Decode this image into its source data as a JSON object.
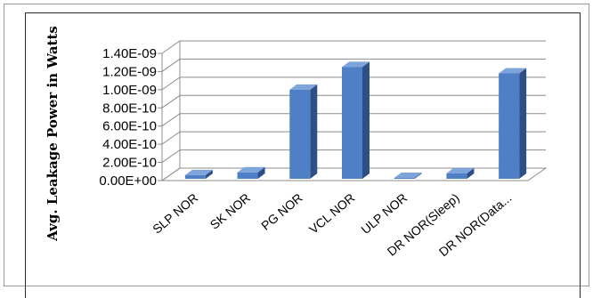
{
  "chart_data": {
    "type": "bar",
    "title": "",
    "xlabel": "",
    "ylabel": "Avg. Leakage Power in Watts",
    "categories": [
      "SLP NOR",
      "SK NOR",
      "PG NOR",
      "VCL NOR",
      "ULP NOR",
      "DR NOR(Sleep)",
      "DR NOR(Data..."
    ],
    "values": [
      6e-11,
      9e-11,
      1e-09,
      1.25e-09,
      0.0,
      8e-11,
      1.18e-09
    ],
    "ylim": [
      0,
      1.4e-09
    ],
    "yticks": [
      {
        "value": 0.0,
        "label": "0.00E+00"
      },
      {
        "value": 2e-10,
        "label": "2.00E-10"
      },
      {
        "value": 4e-10,
        "label": "4.00E-10"
      },
      {
        "value": 6e-10,
        "label": "6.00E-10"
      },
      {
        "value": 8e-10,
        "label": "8.00E-10"
      },
      {
        "value": 1e-09,
        "label": "1.00E-09"
      },
      {
        "value": 1.2e-09,
        "label": "1.20E-09"
      },
      {
        "value": 1.4e-09,
        "label": "1.40E-09"
      }
    ],
    "grid": true,
    "legend": "none",
    "colors": {
      "bar_front": "#4f7fc4",
      "bar_side": "#2c4f86",
      "bar_top": "#7ea4dc",
      "grid": "#8c8c8c"
    }
  }
}
